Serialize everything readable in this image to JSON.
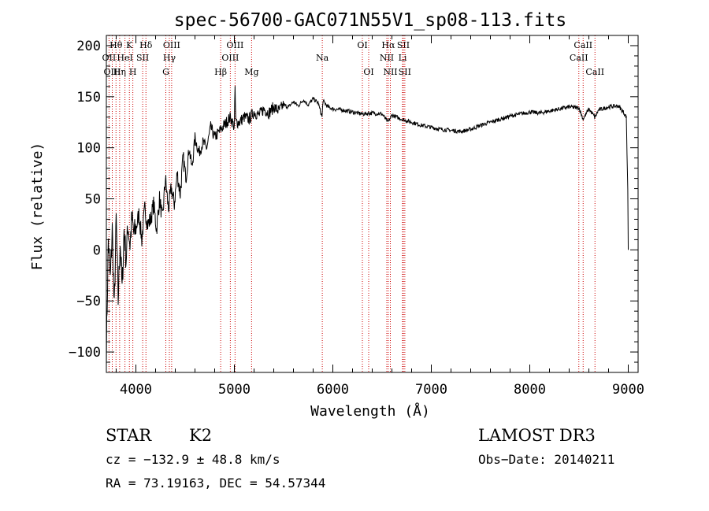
{
  "chart_data": {
    "type": "line",
    "title": "spec-56700-GAC071N55V1_sp08-113.fits",
    "xlabel": "Wavelength (Å)",
    "ylabel": "Flux (relative)",
    "xlim": [
      3700,
      9100
    ],
    "ylim": [
      -120,
      210
    ],
    "xticks": [
      4000,
      5000,
      6000,
      7000,
      8000,
      9000
    ],
    "xtick_labels": [
      "4000",
      "5000",
      "6000",
      "7000",
      "8000",
      "9000"
    ],
    "yticks": [
      -100,
      -50,
      0,
      50,
      100,
      150,
      200
    ],
    "ytick_labels": [
      "−100",
      "−50",
      "0",
      "50",
      "100",
      "150",
      "200"
    ],
    "series": [
      {
        "name": "flux",
        "color": "#000000",
        "x": [
          3700,
          3720,
          3740,
          3760,
          3780,
          3800,
          3820,
          3840,
          3860,
          3880,
          3900,
          3920,
          3940,
          3960,
          3980,
          4000,
          4030,
          4060,
          4090,
          4120,
          4150,
          4180,
          4210,
          4240,
          4270,
          4300,
          4330,
          4360,
          4390,
          4420,
          4450,
          4480,
          4510,
          4540,
          4570,
          4600,
          4640,
          4680,
          4720,
          4760,
          4800,
          4840,
          4880,
          4920,
          4960,
          5000,
          5007,
          5014,
          5050,
          5100,
          5150,
          5200,
          5250,
          5300,
          5350,
          5400,
          5450,
          5500,
          5550,
          5600,
          5650,
          5700,
          5750,
          5800,
          5850,
          5890,
          5900,
          5950,
          6000,
          6100,
          6200,
          6300,
          6400,
          6500,
          6560,
          6600,
          6700,
          6800,
          6900,
          7000,
          7100,
          7200,
          7300,
          7400,
          7500,
          7600,
          7700,
          7800,
          7900,
          8000,
          8100,
          8200,
          8300,
          8400,
          8500,
          8542,
          8600,
          8662,
          8700,
          8800,
          8900,
          8950,
          8980,
          8995,
          9000
        ],
        "y": [
          -100,
          10,
          -30,
          20,
          -60,
          30,
          -50,
          10,
          -40,
          20,
          -10,
          25,
          5,
          30,
          15,
          20,
          35,
          10,
          40,
          25,
          30,
          45,
          20,
          50,
          30,
          70,
          40,
          60,
          45,
          75,
          55,
          90,
          70,
          100,
          80,
          110,
          95,
          105,
          100,
          120,
          110,
          115,
          120,
          125,
          130,
          120,
          160,
          125,
          125,
          130,
          128,
          135,
          132,
          138,
          134,
          140,
          136,
          142,
          140,
          145,
          141,
          147,
          142,
          148,
          144,
          130,
          146,
          140,
          138,
          137,
          135,
          133,
          134,
          133,
          125,
          132,
          128,
          125,
          122,
          120,
          118,
          117,
          116,
          118,
          122,
          125,
          128,
          131,
          133,
          135,
          134,
          136,
          138,
          140,
          139,
          128,
          138,
          130,
          137,
          140,
          141,
          135,
          130,
          60,
          0
        ]
      }
    ],
    "line_markers": [
      {
        "label": "Hθ",
        "wavelength": 3798,
        "row": 1
      },
      {
        "label": "OII",
        "wavelength": 3727,
        "row": 2
      },
      {
        "label": "OIII",
        "wavelength": 3760,
        "row": 3
      },
      {
        "label": "K",
        "wavelength": 3934,
        "row": 1
      },
      {
        "label": "HeI",
        "wavelength": 3889,
        "row": 2
      },
      {
        "label": "Hη",
        "wavelength": 3835,
        "row": 3
      },
      {
        "label": "SII",
        "wavelength": 4069,
        "row": 2
      },
      {
        "label": "H",
        "wavelength": 3969,
        "row": 3
      },
      {
        "label": "Hδ",
        "wavelength": 4102,
        "row": 1
      },
      {
        "label": "OIII",
        "wavelength": 4363,
        "row": 1
      },
      {
        "label": "Hγ",
        "wavelength": 4340,
        "row": 2
      },
      {
        "label": "G",
        "wavelength": 4304,
        "row": 3
      },
      {
        "label": "Hβ",
        "wavelength": 4861,
        "row": 3
      },
      {
        "label": "OIII",
        "wavelength": 5007,
        "row": 1
      },
      {
        "label": "OIII",
        "wavelength": 4959,
        "row": 2
      },
      {
        "label": "Mg",
        "wavelength": 5175,
        "row": 3
      },
      {
        "label": "Na",
        "wavelength": 5893,
        "row": 2
      },
      {
        "label": "OI",
        "wavelength": 6300,
        "row": 1
      },
      {
        "label": "OI",
        "wavelength": 6364,
        "row": 3
      },
      {
        "label": "Hα",
        "wavelength": 6563,
        "row": 1
      },
      {
        "label": "SII",
        "wavelength": 6716,
        "row": 1
      },
      {
        "label": "NII",
        "wavelength": 6548,
        "row": 2
      },
      {
        "label": "Li",
        "wavelength": 6708,
        "row": 2
      },
      {
        "label": "NII",
        "wavelength": 6584,
        "row": 3
      },
      {
        "label": "SII",
        "wavelength": 6731,
        "row": 3
      },
      {
        "label": "CaII",
        "wavelength": 8542,
        "row": 1
      },
      {
        "label": "CaII",
        "wavelength": 8498,
        "row": 2
      },
      {
        "label": "CaII",
        "wavelength": 8662,
        "row": 3
      }
    ],
    "marker_color": "#cc0000"
  },
  "info": {
    "class": "STAR",
    "subclass": "K2",
    "survey": "LAMOST DR3",
    "cz": "cz = −132.9 ± 48.8 km/s",
    "obs_date": "Obs−Date: 20140211",
    "radec": "RA =  73.19163, DEC =  54.57344"
  }
}
